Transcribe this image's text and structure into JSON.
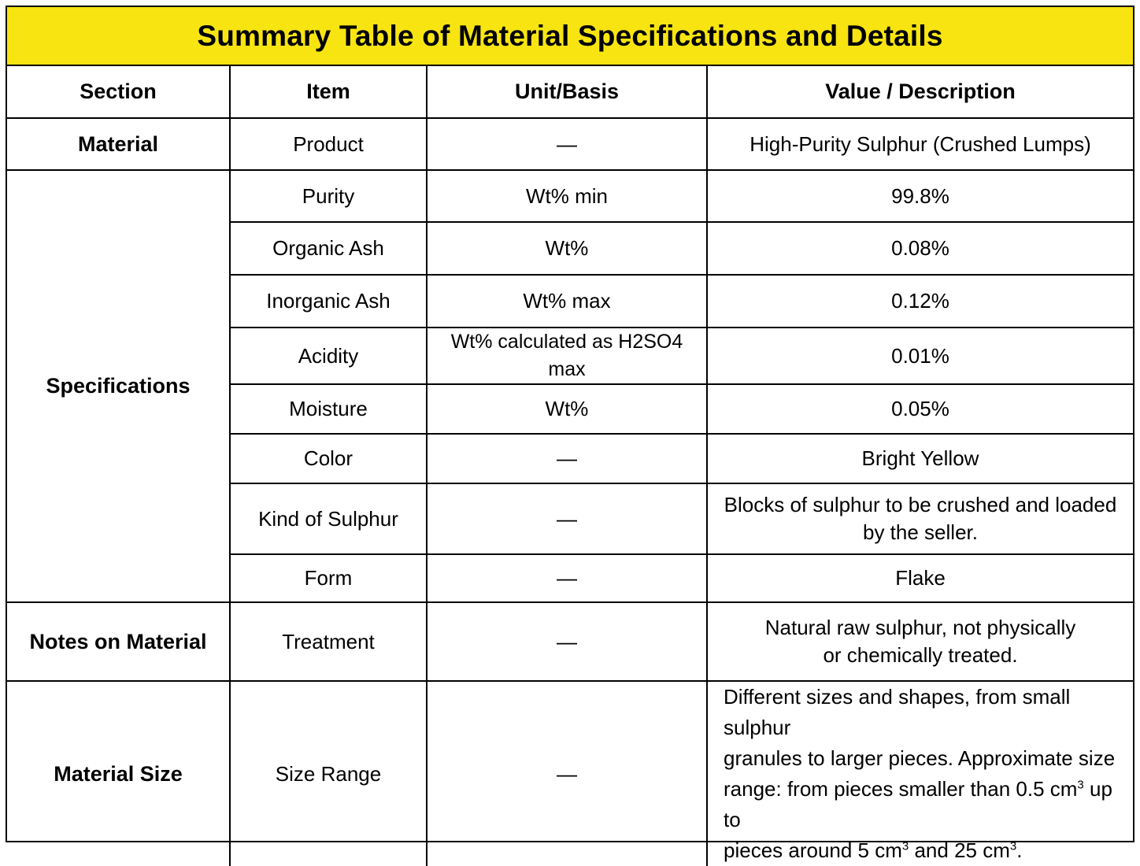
{
  "title": "Summary Table of Material Specifications and Details",
  "headers": {
    "section": "Section",
    "item": "Item",
    "unit": "Unit/Basis",
    "value": "Value / Description"
  },
  "rows": {
    "product": {
      "section": "Material",
      "item": "Product",
      "unit": "—",
      "value": "High-Purity Sulphur (Crushed Lumps)"
    },
    "specifications_label": "Specifications",
    "purity": {
      "item": "Purity",
      "unit": "Wt% min",
      "value": "99.8%"
    },
    "organic_ash": {
      "item": "Organic Ash",
      "unit": "Wt%",
      "value": "0.08%"
    },
    "inorganic_ash": {
      "item": "Inorganic Ash",
      "unit": "Wt% max",
      "value": "0.12%"
    },
    "acidity": {
      "item": "Acidity",
      "unit": "Wt% calculated as H2SO4 max",
      "value": "0.01%"
    },
    "moisture": {
      "item": "Moisture",
      "unit": "Wt%",
      "value": "0.05%"
    },
    "color": {
      "item": "Color",
      "unit": "—",
      "value": "Bright Yellow"
    },
    "kind": {
      "item": "Kind of Sulphur",
      "unit": "—",
      "value_line1": "Blocks of sulphur to be crushed and loaded",
      "value_line2": "by the seller."
    },
    "form": {
      "item": "Form",
      "unit": "—",
      "value": "Flake"
    },
    "treatment": {
      "section": "Notes on Material",
      "item": "Treatment",
      "unit": "—",
      "value_line1": "Natural raw sulphur, not physically",
      "value_line2": "or chemically treated."
    },
    "size": {
      "section": "Material Size",
      "item": "Size Range",
      "unit": "—",
      "line1": "Different sizes and shapes, from small sulphur",
      "line2": "granules to larger pieces.  Approximate size",
      "line3_a": "range: from pieces smaller than 0.5 cm",
      "line3_b": " up to",
      "line4_a": "pieces around 5 cm",
      "line4_b": " and 25 cm",
      "line4_c": ".",
      "sup": "3"
    }
  }
}
